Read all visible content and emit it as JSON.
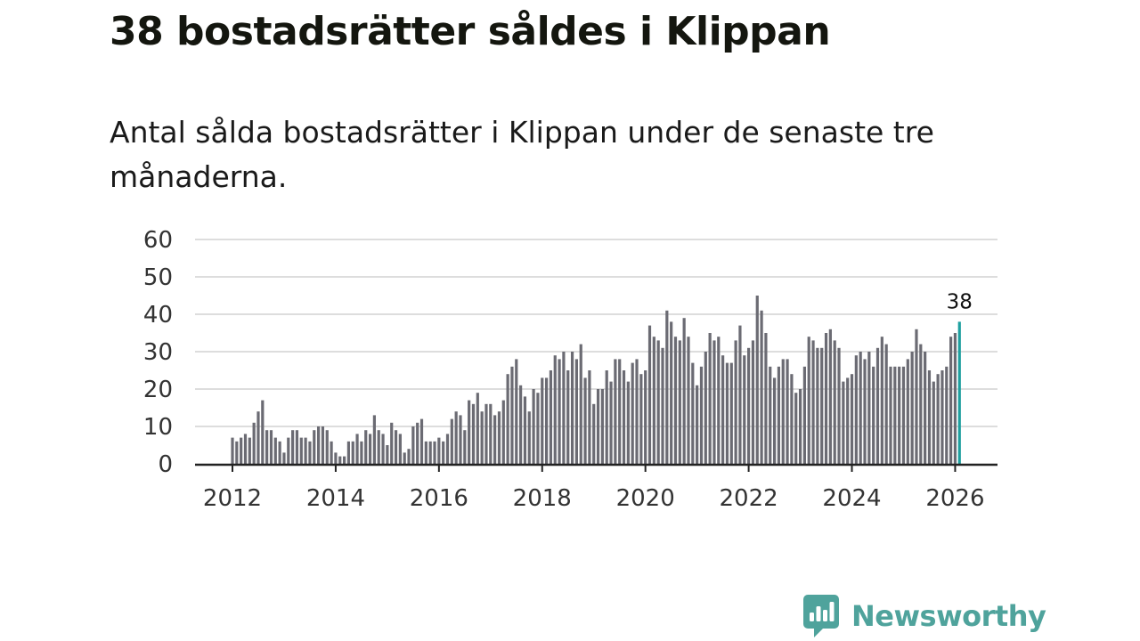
{
  "colors": {
    "bar": "#6b6b73",
    "highlight": "#1fa0a0",
    "grid": "#dddddd",
    "axis": "#222222",
    "brand": "#4fa39c"
  },
  "chart_data": {
    "type": "bar",
    "title": "38 bostadsrätter såldes i Klippan",
    "subtitle": "Antal sålda bostadsrätter i Klippan under de senaste tre månaderna.",
    "xlabel": "",
    "ylabel": "",
    "ylim": [
      0,
      60
    ],
    "y_ticks": [
      0,
      10,
      20,
      30,
      40,
      50,
      60
    ],
    "x_ticks": [
      "2012",
      "2014",
      "2016",
      "2018",
      "2020",
      "2022",
      "2024",
      "2026"
    ],
    "x_start": "2012-01",
    "grid": true,
    "highlight_label": "38",
    "series": [
      {
        "name": "Sålda bostadsrätter (rullande tre månader)",
        "values": [
          7,
          6,
          7,
          8,
          7,
          11,
          14,
          17,
          9,
          9,
          7,
          6,
          3,
          7,
          9,
          9,
          7,
          7,
          6,
          9,
          10,
          10,
          9,
          6,
          3,
          2,
          2,
          6,
          6,
          8,
          6,
          9,
          8,
          13,
          9,
          8,
          5,
          11,
          9,
          8,
          3,
          4,
          10,
          11,
          12,
          6,
          6,
          6,
          7,
          6,
          8,
          12,
          14,
          13,
          9,
          17,
          16,
          19,
          14,
          16,
          16,
          13,
          14,
          17,
          24,
          26,
          28,
          21,
          18,
          14,
          20,
          19,
          23,
          23,
          25,
          29,
          28,
          30,
          25,
          30,
          28,
          32,
          23,
          25,
          16,
          20,
          20,
          25,
          22,
          28,
          28,
          25,
          22,
          27,
          28,
          24,
          25,
          37,
          34,
          33,
          31,
          41,
          38,
          34,
          33,
          39,
          34,
          27,
          21,
          26,
          30,
          35,
          33,
          34,
          29,
          27,
          27,
          33,
          37,
          29,
          31,
          33,
          45,
          41,
          35,
          26,
          23,
          26,
          28,
          28,
          24,
          19,
          20,
          26,
          34,
          33,
          31,
          31,
          35,
          36,
          33,
          31,
          22,
          23,
          24,
          29,
          30,
          28,
          30,
          26,
          31,
          34,
          32,
          26,
          26,
          26,
          26,
          28,
          30,
          36,
          32,
          30,
          25,
          22,
          24,
          25,
          26,
          34,
          35,
          38
        ]
      }
    ]
  },
  "brand": {
    "name": "Newsworthy",
    "icon": "newsworthy-logo-icon"
  }
}
